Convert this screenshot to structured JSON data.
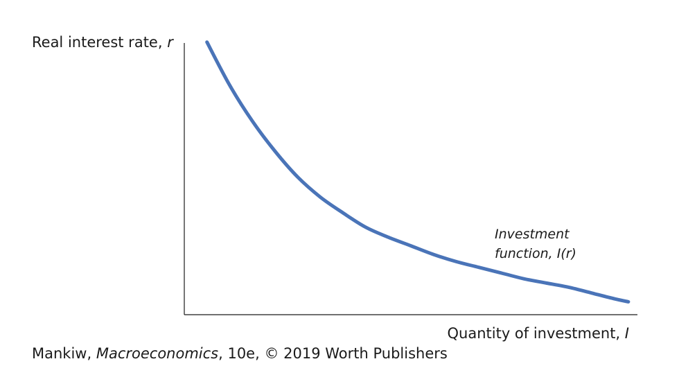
{
  "chart_data": {
    "type": "line",
    "title": "",
    "ylabel_main": "Real interest rate,",
    "ylabel_var": "r",
    "xlabel_main": "Quantity of investment,",
    "xlabel_var": "I",
    "ticks": "none",
    "grid": false,
    "series": [
      {
        "label_line1": "Investment",
        "label_line2": "function, I(r)",
        "color": "#4a74b8",
        "shape": "convex-decreasing",
        "x": [
          0.05,
          0.1,
          0.15,
          0.2,
          0.25,
          0.3,
          0.35,
          0.4,
          0.45,
          0.5,
          0.55,
          0.6,
          0.65,
          0.7,
          0.75,
          0.8,
          0.85,
          0.9,
          0.95,
          0.98
        ],
        "y": [
          0.95,
          0.8,
          0.675,
          0.57,
          0.48,
          0.41,
          0.355,
          0.305,
          0.27,
          0.24,
          0.21,
          0.185,
          0.165,
          0.145,
          0.125,
          0.11,
          0.095,
          0.075,
          0.055,
          0.045
        ]
      }
    ],
    "xlim": [
      0,
      1
    ],
    "ylim": [
      0,
      1
    ]
  },
  "credit": {
    "author": "Mankiw,",
    "book": "Macroeconomics",
    "rest": ", 10e, © 2019 Worth Publishers"
  }
}
